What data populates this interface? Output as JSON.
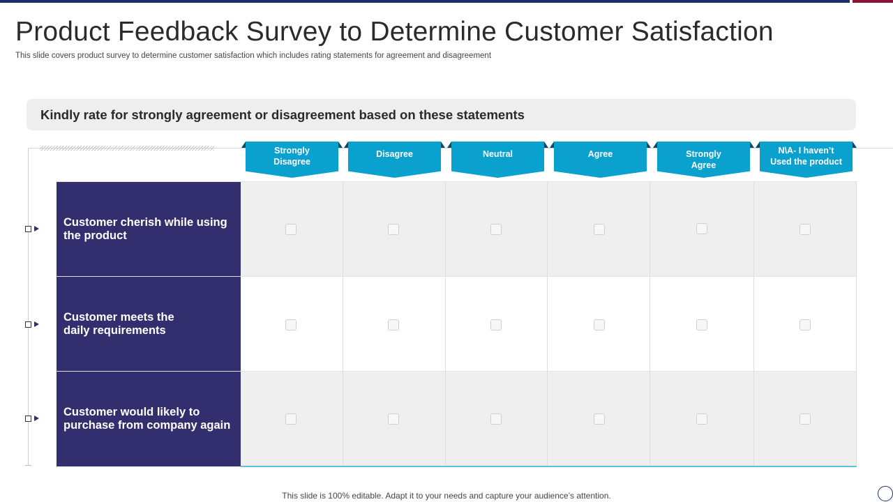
{
  "slide": {
    "title": "Product Feedback Survey to Determine Customer Satisfaction",
    "subtitle": "This slide covers product survey to determine customer satisfaction which includes rating statements for agreement and disagreement",
    "prompt": "Kindly rate for strongly agreement or disagreement based on these statements",
    "footer": "This slide is 100% editable. Adapt it to your needs and capture your audience’s attention."
  },
  "columns": [
    {
      "label": "Strongly\nDisagree"
    },
    {
      "label": "Disagree"
    },
    {
      "label": "Neutral"
    },
    {
      "label": "Agree"
    },
    {
      "label": "Strongly\nAgree"
    },
    {
      "label": "N\\A- I haven’t\nUsed the product"
    }
  ],
  "statements": [
    {
      "text": "Customer cherish while using\nthe product"
    },
    {
      "text": "Customer meets the\ndaily requirements"
    },
    {
      "text": "Customer would likely to\npurchase from company again"
    }
  ],
  "colors": {
    "header_fill": "#0aa1cf",
    "statement_fill": "#332f6e",
    "top_bar": "#1c2e66",
    "accent": "#8a1538"
  }
}
